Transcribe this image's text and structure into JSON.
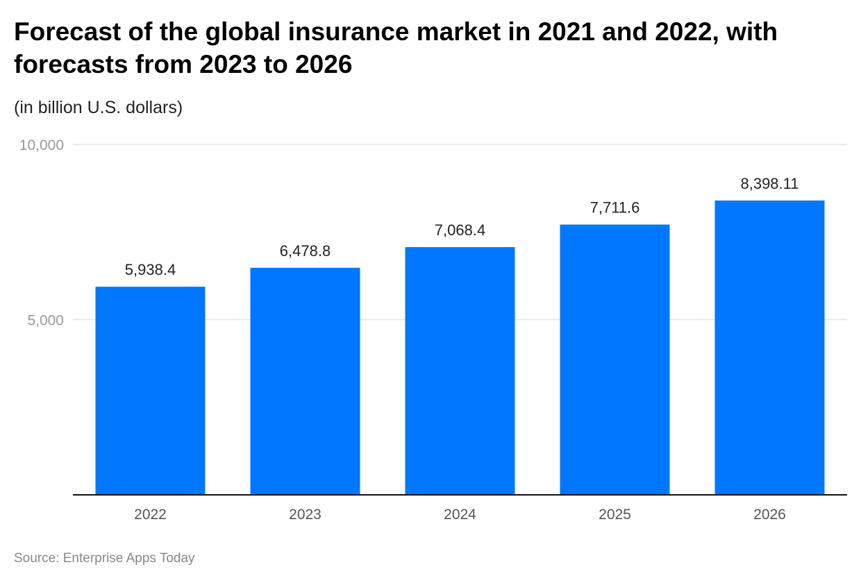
{
  "chart_data": {
    "type": "bar",
    "title": "Forecast of the global insurance market in 2021 and 2022, with forecasts from 2023 to 2026",
    "subtitle": "(in billion U.S. dollars)",
    "source": "Source: Enterprise Apps Today",
    "categories": [
      "2022",
      "2023",
      "2024",
      "2025",
      "2026"
    ],
    "values": [
      5938.4,
      6478.8,
      7068.4,
      7711.6,
      8398.11
    ],
    "data_labels": [
      "5,938.4",
      "6,478.8",
      "7,068.4",
      "7,711.6",
      "8,398.11"
    ],
    "ylim": [
      0,
      10000
    ],
    "yticks": [
      5000,
      10000
    ],
    "ytick_labels": [
      "5,000",
      "10,000"
    ],
    "grid": true,
    "legend": "none",
    "bar_color": "#0077ff"
  }
}
